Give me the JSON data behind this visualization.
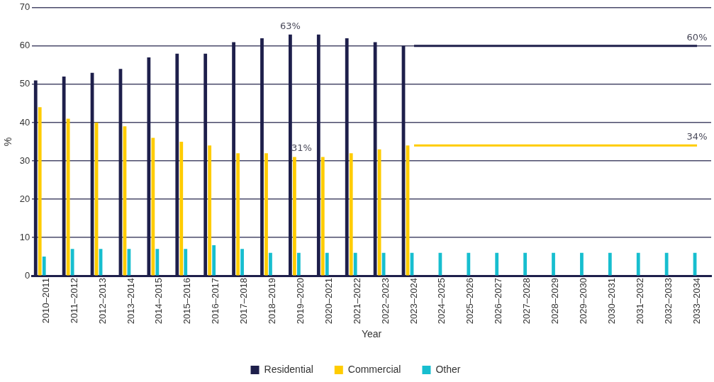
{
  "chart_data": {
    "type": "bar",
    "xlabel": "Year",
    "ylabel": "%",
    "categories": [
      "2010–2011",
      "2011–2012",
      "2012–2013",
      "2013–2014",
      "2014–2015",
      "2015–2016",
      "2016–2017",
      "2017–2018",
      "2018–2019",
      "2019–2020",
      "2020–2021",
      "2021–2022",
      "2022–2023",
      "2023–2024",
      "2024–2025",
      "2025–2026",
      "2026–2027",
      "2027–2028",
      "2028–2029",
      "2029–2030",
      "2030–2031",
      "2031–2032",
      "2032–2033",
      "2033–2034"
    ],
    "series": [
      {
        "name": "Residential",
        "color": "#1e1f4b",
        "values": [
          51,
          52,
          53,
          54,
          57,
          58,
          58,
          61,
          62,
          63,
          63,
          62,
          61,
          60,
          null,
          null,
          null,
          null,
          null,
          null,
          null,
          null,
          null,
          null
        ],
        "value_labels": [
          null,
          null,
          null,
          null,
          null,
          null,
          null,
          null,
          null,
          "63%",
          null,
          null,
          null,
          null,
          null,
          null,
          null,
          null,
          null,
          null,
          null,
          null,
          null,
          null
        ]
      },
      {
        "name": "Commercial",
        "color": "#ffcc00",
        "values": [
          44,
          41,
          40,
          39,
          36,
          35,
          34,
          32,
          32,
          31,
          31,
          32,
          33,
          34,
          null,
          null,
          null,
          null,
          null,
          null,
          null,
          null,
          null,
          null
        ],
        "value_labels": [
          null,
          null,
          null,
          null,
          null,
          null,
          null,
          null,
          null,
          "31%",
          null,
          null,
          null,
          null,
          null,
          null,
          null,
          null,
          null,
          null,
          null,
          null,
          null,
          null
        ]
      },
      {
        "name": "Other",
        "color": "#17becf",
        "values": [
          5,
          7,
          7,
          7,
          7,
          7,
          8,
          7,
          6,
          6,
          6,
          6,
          6,
          6,
          6,
          6,
          6,
          6,
          6,
          6,
          6,
          6,
          6,
          6
        ]
      },
      {
        "type": "line",
        "color": "#1e1f4b",
        "values": [
          null,
          null,
          null,
          null,
          null,
          null,
          null,
          null,
          null,
          null,
          null,
          null,
          null,
          60,
          60,
          60,
          60,
          60,
          60,
          60,
          60,
          60,
          60,
          60
        ],
        "value_labels": [
          null,
          null,
          null,
          null,
          null,
          null,
          null,
          null,
          null,
          null,
          null,
          null,
          null,
          null,
          null,
          null,
          null,
          null,
          null,
          null,
          null,
          null,
          null,
          "60%"
        ]
      },
      {
        "type": "line",
        "color": "#ffcc00",
        "values": [
          null,
          null,
          null,
          null,
          null,
          null,
          null,
          null,
          null,
          null,
          null,
          null,
          null,
          34,
          34,
          34,
          34,
          34,
          34,
          34,
          34,
          34,
          34,
          34
        ],
        "value_labels": [
          null,
          null,
          null,
          null,
          null,
          null,
          null,
          null,
          null,
          null,
          null,
          null,
          null,
          null,
          null,
          null,
          null,
          null,
          null,
          null,
          null,
          null,
          null,
          "34%"
        ]
      }
    ],
    "ylim": [
      0,
      70
    ],
    "yticks": [
      0,
      10,
      20,
      30,
      40,
      50,
      60,
      70
    ],
    "grid": "y",
    "legend": "bottom",
    "marker": "none",
    "line_style": "solid"
  }
}
